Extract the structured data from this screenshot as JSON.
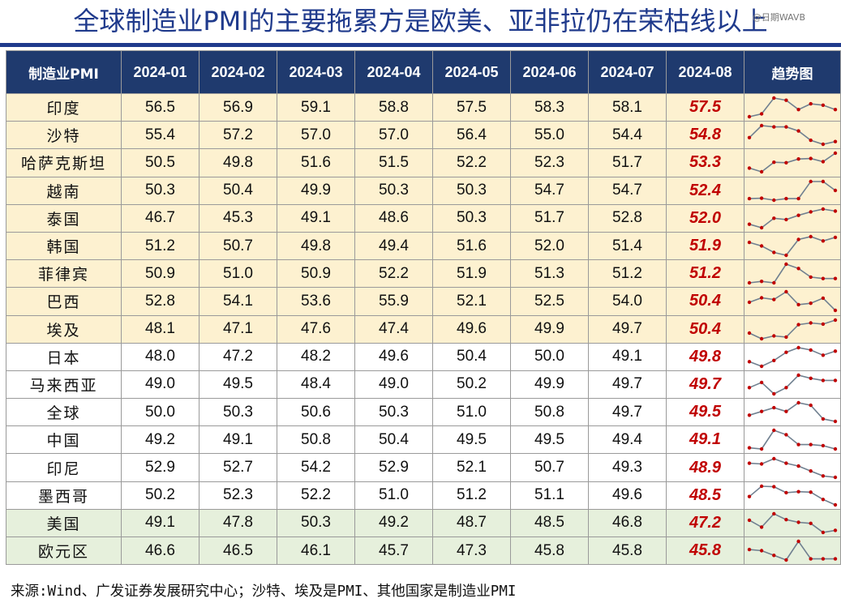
{
  "title": "全球制造业PMI的主要拖累方是欧美、亚非拉仍在荣枯线以上",
  "watermark": "@日期WAVB",
  "source": "来源:Wind、广发证券发展研究中心；沙特、埃及是PMI、其他国家是制造业PMI",
  "colors": {
    "header_bg": "#1f3a6e",
    "title": "#1f3a8c",
    "latest_value": "#c00000",
    "row_emerging": "#fdf1d0",
    "row_neutral": "#ffffff",
    "row_developed": "#e6f0dc",
    "sparkline_line": "#708090",
    "sparkline_point": "#c00000"
  },
  "chart_data": {
    "type": "table",
    "columns": [
      "制造业PMI",
      "2024-01",
      "2024-02",
      "2024-03",
      "2024-04",
      "2024-05",
      "2024-06",
      "2024-07",
      "2024-08",
      "趋势图"
    ],
    "months": [
      "2024-01",
      "2024-02",
      "2024-03",
      "2024-04",
      "2024-05",
      "2024-06",
      "2024-07",
      "2024-08"
    ],
    "rows": [
      {
        "country": "印度",
        "group": "emerging",
        "values": [
          "56.5",
          "56.9",
          "59.1",
          "58.8",
          "57.5",
          "58.3",
          "58.1",
          "57.5"
        ]
      },
      {
        "country": "沙特",
        "group": "emerging",
        "values": [
          "55.4",
          "57.2",
          "57.0",
          "57.0",
          "56.4",
          "55.0",
          "54.4",
          "54.8"
        ]
      },
      {
        "country": "哈萨克斯坦",
        "group": "emerging",
        "values": [
          "50.5",
          "49.8",
          "51.6",
          "51.5",
          "52.2",
          "52.3",
          "51.7",
          "53.3"
        ]
      },
      {
        "country": "越南",
        "group": "emerging",
        "values": [
          "50.3",
          "50.4",
          "49.9",
          "50.3",
          "50.3",
          "54.7",
          "54.7",
          "52.4"
        ]
      },
      {
        "country": "泰国",
        "group": "emerging",
        "values": [
          "46.7",
          "45.3",
          "49.1",
          "48.6",
          "50.3",
          "51.7",
          "52.8",
          "52.0"
        ]
      },
      {
        "country": "韩国",
        "group": "emerging",
        "values": [
          "51.2",
          "50.7",
          "49.8",
          "49.4",
          "51.6",
          "52.0",
          "51.4",
          "51.9"
        ]
      },
      {
        "country": "菲律宾",
        "group": "emerging",
        "values": [
          "50.9",
          "51.0",
          "50.9",
          "52.2",
          "51.9",
          "51.3",
          "51.2",
          "51.2"
        ]
      },
      {
        "country": "巴西",
        "group": "emerging",
        "values": [
          "52.8",
          "54.1",
          "53.6",
          "55.9",
          "52.1",
          "52.5",
          "54.0",
          "50.4"
        ]
      },
      {
        "country": "埃及",
        "group": "emerging",
        "values": [
          "48.1",
          "47.1",
          "47.6",
          "47.4",
          "49.6",
          "49.9",
          "49.7",
          "50.4"
        ]
      },
      {
        "country": "日本",
        "group": "neutral",
        "values": [
          "48.0",
          "47.2",
          "48.2",
          "49.6",
          "50.4",
          "50.0",
          "49.1",
          "49.8"
        ]
      },
      {
        "country": "马来西亚",
        "group": "neutral",
        "values": [
          "49.0",
          "49.5",
          "48.4",
          "49.0",
          "50.2",
          "49.9",
          "49.7",
          "49.7"
        ]
      },
      {
        "country": "全球",
        "group": "neutral",
        "values": [
          "50.0",
          "50.3",
          "50.6",
          "50.3",
          "51.0",
          "50.8",
          "49.7",
          "49.5"
        ]
      },
      {
        "country": "中国",
        "group": "neutral",
        "values": [
          "49.2",
          "49.1",
          "50.8",
          "50.4",
          "49.5",
          "49.5",
          "49.4",
          "49.1"
        ]
      },
      {
        "country": "印尼",
        "group": "neutral",
        "values": [
          "52.9",
          "52.7",
          "54.2",
          "52.9",
          "52.1",
          "50.7",
          "49.3",
          "48.9"
        ]
      },
      {
        "country": "墨西哥",
        "group": "neutral",
        "values": [
          "50.2",
          "52.3",
          "52.2",
          "51.0",
          "51.2",
          "51.1",
          "49.6",
          "48.5"
        ]
      },
      {
        "country": "美国",
        "group": "developed",
        "values": [
          "49.1",
          "47.8",
          "50.3",
          "49.2",
          "48.7",
          "48.5",
          "46.8",
          "47.2"
        ]
      },
      {
        "country": "欧元区",
        "group": "developed",
        "values": [
          "46.6",
          "46.5",
          "46.1",
          "45.7",
          "47.3",
          "45.8",
          "45.8",
          "45.8"
        ]
      }
    ]
  }
}
